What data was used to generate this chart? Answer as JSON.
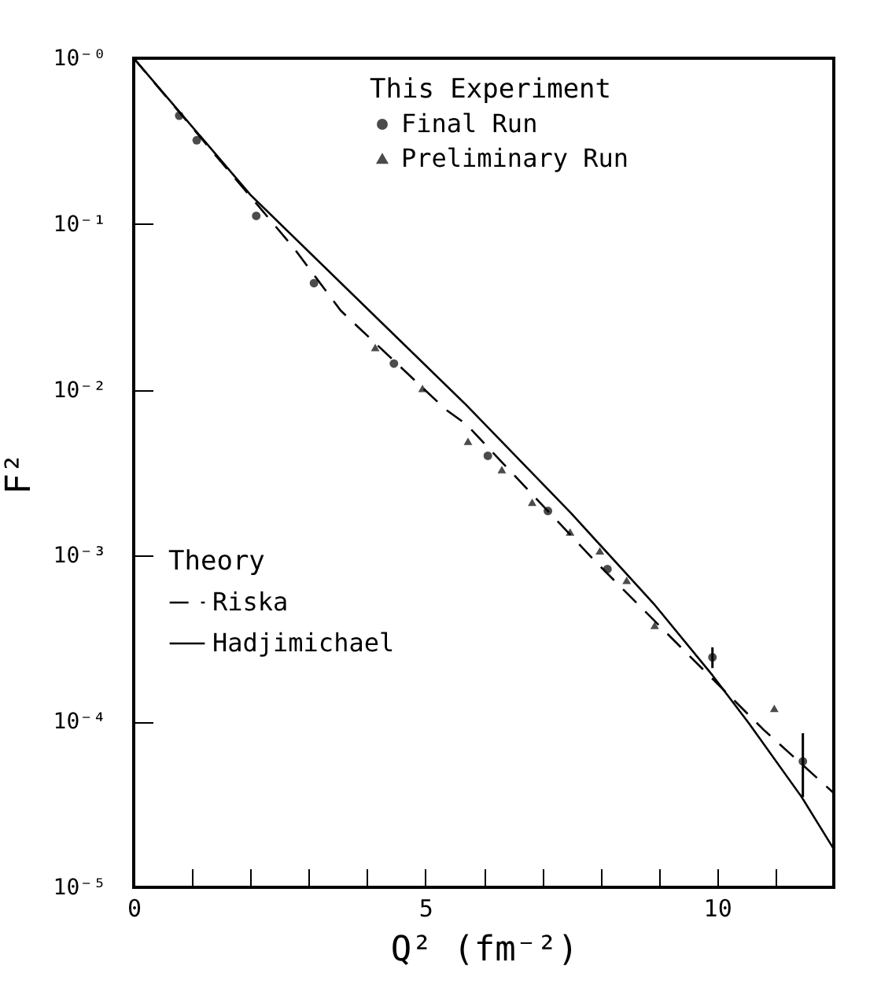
{
  "chart_data": {
    "type": "scatter",
    "xlabel": "Q² (fm⁻²)",
    "ylabel": "F²",
    "log": "y",
    "xlim": [
      0,
      12
    ],
    "xticks": [
      0,
      {
        "value": 1,
        "label": null
      },
      {
        "value": 2,
        "label": null
      },
      {
        "value": 3,
        "label": null
      },
      {
        "value": 4,
        "label": null
      },
      5,
      {
        "value": 6,
        "label": null
      },
      {
        "value": 7,
        "label": null
      },
      {
        "value": 8,
        "label": null
      },
      {
        "value": 9,
        "label": null
      },
      10,
      {
        "value": 11,
        "label": null
      },
      {
        "value": 12,
        "label": null
      }
    ],
    "ylim": [
      1e-05,
      1
    ],
    "yticks": [
      {
        "value": 1e-05,
        "label": "10⁻⁵"
      },
      {
        "value": 0.0001,
        "label": "10⁻⁴"
      },
      {
        "value": 0.001,
        "label": "10⁻³"
      },
      {
        "value": 0.01,
        "label": "10⁻²"
      },
      {
        "value": 0.1,
        "label": "10⁻¹"
      },
      {
        "value": 1,
        "label": "10⁻⁰"
      }
    ],
    "legend": "top left",
    "annotations": [
      "This Experiment",
      "Theory"
    ],
    "series": [
      {
        "name": "Final Run",
        "type": "scatter",
        "marker": "circle",
        "color": "#000000",
        "x": [
          0.78,
          1.08,
          2.1,
          3.09,
          4.46,
          6.07,
          7.1,
          8.12,
          9.92,
          11.47
        ],
        "values": [
          0.45,
          0.32,
          0.112,
          0.044,
          0.0144,
          0.004,
          0.00186,
          0.00083,
          0.000244,
          5.75e-05
        ],
        "errors": [
          null,
          null,
          null,
          null,
          null,
          null,
          null,
          null,
          [
            0.00021,
            0.00028
          ],
          [
            3.5e-05,
            8.5e-05
          ]
        ]
      },
      {
        "name": "Preliminary Run",
        "type": "scatter",
        "marker": "triangle",
        "color": "#000000",
        "x": [
          4.14,
          4.95,
          5.73,
          6.31,
          6.83,
          7.48,
          7.99,
          8.45,
          8.93,
          10.98
        ],
        "values": [
          0.018,
          0.0102,
          0.0049,
          0.0033,
          0.0021,
          0.00139,
          0.00107,
          0.00071,
          0.00038,
          0.00012
        ]
      },
      {
        "name": "Riska",
        "type": "line",
        "line_style": "dashed",
        "color": "#000000",
        "x": [
          0,
          2.74,
          3.55,
          5.35,
          5.7,
          7.93,
          9.38,
          10.8,
          12
        ],
        "values": [
          1,
          0.072,
          0.03,
          0.0076,
          0.0062,
          0.00091,
          0.00028,
          8.9e-05,
          3.7e-05
        ]
      },
      {
        "name": "Hadjimichael",
        "type": "line",
        "line_style": "solid",
        "color": "#000000",
        "x": [
          0,
          2,
          5.7,
          7.5,
          8.92,
          9.92,
          10.54,
          11.45,
          12
        ],
        "values": [
          1,
          0.15,
          0.0081,
          0.0018,
          0.00051,
          0.00019,
          9.8e-05,
          3.5e-05,
          1.7e-05
        ]
      }
    ]
  }
}
